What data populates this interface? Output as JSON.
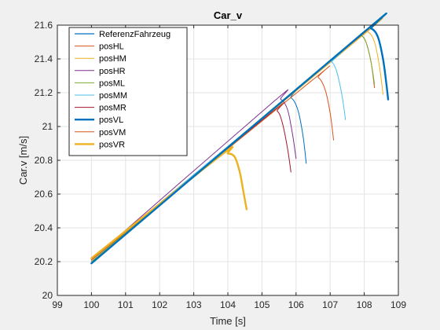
{
  "chart_data": {
    "type": "line",
    "title": "Car_v",
    "xlabel": "Time [s]",
    "ylabel": "Car.v [m/s]",
    "xlim": [
      99,
      109
    ],
    "ylim": [
      20,
      21.6
    ],
    "xticks": [
      "99",
      "100",
      "101",
      "102",
      "103",
      "104",
      "105",
      "106",
      "107",
      "108",
      "109"
    ],
    "yticks": [
      "20",
      "20.2",
      "20.4",
      "20.6",
      "20.8",
      "21",
      "21.2",
      "21.4",
      "21.6"
    ],
    "grid": true,
    "legend_position": "top-left",
    "series": [
      {
        "name": "ReferenzFahrzeug",
        "color": "#0072BD",
        "width": 1.2,
        "x": [
          100.0,
          108.0,
          108.2,
          108.4,
          108.55,
          108.65,
          108.7
        ],
        "y": [
          20.19,
          21.56,
          21.58,
          21.53,
          21.4,
          21.25,
          21.16
        ]
      },
      {
        "name": "posHL",
        "color": "#D95319",
        "width": 1.0,
        "x": [
          100.0,
          107.8,
          107.9,
          108.05,
          108.2,
          108.3
        ],
        "y": [
          20.21,
          21.52,
          21.54,
          21.5,
          21.38,
          21.23
        ]
      },
      {
        "name": "posHM",
        "color": "#EDB120",
        "width": 1.0,
        "x": [
          100.0,
          107.9,
          108.1,
          108.3,
          108.45,
          108.55
        ],
        "y": [
          20.2,
          21.53,
          21.56,
          21.5,
          21.35,
          21.19
        ]
      },
      {
        "name": "posHR",
        "color": "#7E2F8E",
        "width": 1.0,
        "x": [
          100.0,
          105.3,
          105.55,
          105.75,
          105.9,
          106.0
        ],
        "y": [
          20.21,
          21.14,
          21.16,
          21.1,
          20.95,
          20.81
        ]
      },
      {
        "name": "posML",
        "color": "#77AC30",
        "width": 1.0,
        "x": [
          100.0,
          107.75,
          107.9,
          108.05,
          108.2,
          108.3
        ],
        "y": [
          20.2,
          21.52,
          21.54,
          21.5,
          21.38,
          21.25
        ]
      },
      {
        "name": "posMM",
        "color": "#4DBEEE",
        "width": 1.0,
        "x": [
          100.0,
          106.85,
          107.05,
          107.2,
          107.35,
          107.45
        ],
        "y": [
          20.21,
          21.36,
          21.38,
          21.32,
          21.18,
          21.04
        ]
      },
      {
        "name": "posMR",
        "color": "#A2142F",
        "width": 1.0,
        "x": [
          100.0,
          105.2,
          105.45,
          105.6,
          105.75,
          105.85
        ],
        "y": [
          20.21,
          21.07,
          21.09,
          21.02,
          20.87,
          20.73
        ]
      },
      {
        "name": "posVL",
        "color": "#0072BD",
        "width": 2.4,
        "x": [
          100.0,
          108.0,
          108.2,
          108.4,
          108.55,
          108.65,
          108.7
        ],
        "y": [
          20.19,
          21.56,
          21.58,
          21.53,
          21.4,
          21.25,
          21.16
        ]
      },
      {
        "name": "posVM",
        "color": "#D95319",
        "width": 1.0,
        "x": [
          100.0,
          106.45,
          106.65,
          106.85,
          107.0,
          107.1
        ],
        "y": [
          20.21,
          21.27,
          21.29,
          21.22,
          21.08,
          20.92
        ]
      },
      {
        "name": "posVR",
        "color": "#EDB120",
        "width": 2.4,
        "x": [
          100.0,
          103.8,
          104.0,
          104.2,
          104.35,
          104.45,
          104.55
        ],
        "y": [
          20.22,
          20.83,
          20.84,
          20.82,
          20.73,
          20.62,
          20.51
        ]
      }
    ],
    "extra_curves": [
      {
        "color": "#0072BD",
        "width": 1.0,
        "x": [
          100.0,
          105.6,
          105.85,
          106.05,
          106.2,
          106.3
        ],
        "y": [
          20.2,
          21.15,
          21.17,
          21.1,
          20.95,
          20.78
        ]
      }
    ]
  }
}
